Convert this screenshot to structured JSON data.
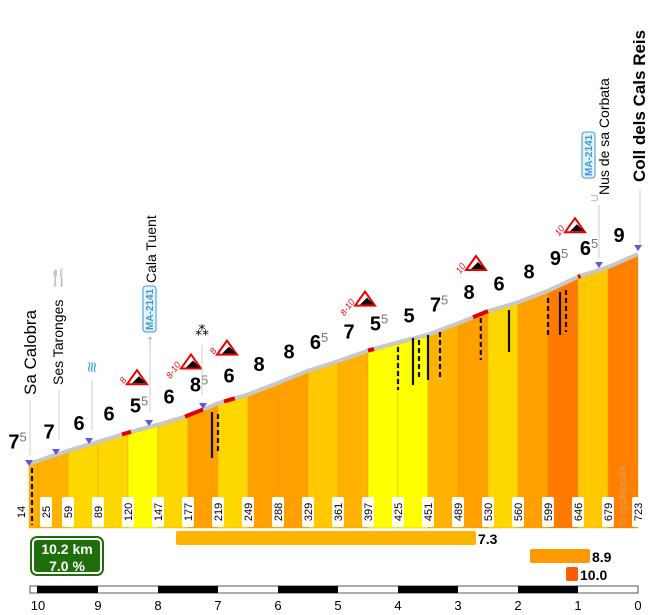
{
  "chart_data": {
    "type": "area",
    "title": "",
    "xlabel": "",
    "ylabel": "",
    "x_direction": "reversed (km remaining to summit)",
    "x_ticks": [
      "10",
      "9",
      "8",
      "7",
      "6",
      "5",
      "4",
      "3",
      "2",
      "1",
      "0"
    ],
    "distance_km": [
      10.15,
      10.0,
      9.5,
      9.0,
      8.5,
      8.0,
      7.5,
      7.0,
      6.5,
      6.0,
      5.5,
      5.0,
      4.5,
      4.0,
      3.5,
      3.0,
      2.5,
      2.0,
      1.5,
      1.0,
      0.5,
      0.0
    ],
    "altitude_m": [
      14,
      25,
      59,
      89,
      120,
      147,
      177,
      219,
      249,
      288,
      329,
      361,
      397,
      425,
      451,
      489,
      530,
      560,
      599,
      646,
      679,
      723
    ],
    "segment_gradient_labels": [
      {
        "main": "7",
        "sup": "5"
      },
      {
        "main": "7",
        "sup": ""
      },
      {
        "main": "6",
        "sup": ""
      },
      {
        "main": "6",
        "sup": ""
      },
      {
        "main": "5",
        "sup": "5"
      },
      {
        "main": "6",
        "sup": ""
      },
      {
        "main": "8",
        "sup": "5"
      },
      {
        "main": "6",
        "sup": ""
      },
      {
        "main": "8",
        "sup": ""
      },
      {
        "main": "8",
        "sup": ""
      },
      {
        "main": "6",
        "sup": "5"
      },
      {
        "main": "7",
        "sup": ""
      },
      {
        "main": "5",
        "sup": "5"
      },
      {
        "main": "5",
        "sup": ""
      },
      {
        "main": "7",
        "sup": "5"
      },
      {
        "main": "8",
        "sup": ""
      },
      {
        "main": "6",
        "sup": ""
      },
      {
        "main": "8",
        "sup": ""
      },
      {
        "main": "9",
        "sup": "5"
      },
      {
        "main": "6",
        "sup": "5"
      },
      {
        "main": "9",
        "sup": ""
      }
    ],
    "segment_gradients": [
      7.5,
      7,
      6,
      6,
      5.5,
      6,
      8.5,
      6,
      8,
      8,
      6.5,
      7,
      5.5,
      5,
      7.5,
      8,
      6,
      8,
      9.5,
      6.5,
      9
    ],
    "steep_warnings": [
      {
        "km": 8.35,
        "label": "8"
      },
      {
        "km": 7.45,
        "label": "8-10"
      },
      {
        "km": 6.85,
        "label": "8"
      },
      {
        "km": 4.55,
        "label": "8-10"
      },
      {
        "km": 2.7,
        "label": "10"
      },
      {
        "km": 1.05,
        "label": "10"
      }
    ],
    "steepest_sections": [
      {
        "gradient": "7.3",
        "from_km": 7.7,
        "to_km": 2.7,
        "color": "#ffb400"
      },
      {
        "gradient": "8.9",
        "from_km": 1.8,
        "to_km": 0.8,
        "color": "#ff9a00"
      },
      {
        "gradient": "10.0",
        "from_km": 1.2,
        "to_km": 1.0,
        "color": "#ff5a00"
      }
    ],
    "grade_colors": {
      "5": "#ffff00",
      "6": "#ffd700",
      "7": "#ffb800",
      "8": "#ff9f00",
      "9": "#ff7f00"
    }
  },
  "pois": [
    {
      "km": 10.15,
      "label": "Sa Calobra",
      "type": "place"
    },
    {
      "km": 9.7,
      "label": "Ses Taronges",
      "type": "restaurant",
      "icon": "fork-knife-icon"
    },
    {
      "km": 9.15,
      "label": "",
      "type": "water",
      "icon": "water-icon"
    },
    {
      "km": 8.15,
      "label": "Cala Tuent",
      "road": "MA-2141",
      "type": "junction",
      "icon": "arrow-up-icon"
    },
    {
      "km": 7.25,
      "label": "",
      "type": "viewpoint",
      "icon": "viewpoint-icon"
    },
    {
      "km": 0.65,
      "label": "Nus de sa Corbata",
      "road": "MA-2141",
      "type": "bridge",
      "icon": "loop-icon"
    },
    {
      "km": 0.0,
      "label": "Coll dels Cals Reis",
      "type": "summit"
    }
  ],
  "summary": {
    "distance": "10.2 km",
    "gradient": "7.0 %"
  },
  "watermark": "© cyclingcols",
  "colors": {
    "profile_line": "#c8c8c8",
    "steep_red": "#e00000",
    "poi_marker": "#5a5adc",
    "road_badge": "#3a9ad9",
    "summary_green": "#1e6e0a"
  }
}
